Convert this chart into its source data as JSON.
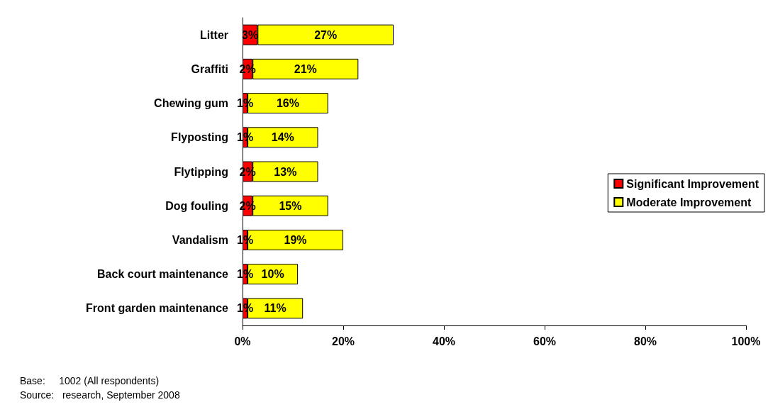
{
  "chart_data": {
    "type": "bar",
    "orientation": "horizontal",
    "stacked": true,
    "categories": [
      "Litter",
      "Graffiti",
      "Chewing gum",
      "Flyposting",
      "Flytipping",
      "Dog fouling",
      "Vandalism",
      "Back court maintenance",
      "Front garden maintenance"
    ],
    "series": [
      {
        "name": "Significant Improvement",
        "color": "#ff0000",
        "values": [
          3,
          2,
          1,
          1,
          2,
          2,
          1,
          1,
          1
        ],
        "value_labels": [
          "3%",
          "2%",
          "1%",
          "1%",
          "2%",
          "2%",
          "1%",
          "1%",
          "1%"
        ]
      },
      {
        "name": "Moderate Improvement",
        "color": "#ffff00",
        "values": [
          27,
          21,
          16,
          14,
          13,
          15,
          19,
          10,
          11
        ],
        "value_labels": [
          "27%",
          "21%",
          "16%",
          "14%",
          "13%",
          "15%",
          "19%",
          "10%",
          "11%"
        ]
      }
    ],
    "xlim": [
      0,
      100
    ],
    "xticks": [
      {
        "value": 0,
        "label": "0%"
      },
      {
        "value": 20,
        "label": "20%"
      },
      {
        "value": 40,
        "label": "40%"
      },
      {
        "value": 60,
        "label": "60%"
      },
      {
        "value": 80,
        "label": "80%"
      },
      {
        "value": 100,
        "label": "100%"
      }
    ],
    "grid": false,
    "legend": "right",
    "annotations": [
      "Base:     1002 (All respondents)",
      "Source:   research, September 2008"
    ]
  }
}
